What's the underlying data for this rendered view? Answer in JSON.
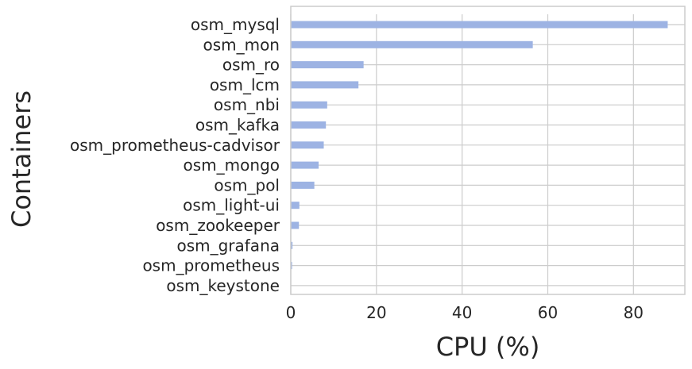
{
  "chart_data": {
    "type": "bar",
    "orientation": "horizontal",
    "categories": [
      "osm_mysql",
      "osm_mon",
      "osm_ro",
      "osm_lcm",
      "osm_nbi",
      "osm_kafka",
      "osm_prometheus-cadvisor",
      "osm_mongo",
      "osm_pol",
      "osm_light-ui",
      "osm_zookeeper",
      "osm_grafana",
      "osm_prometheus",
      "osm_keystone"
    ],
    "values": [
      88,
      56.5,
      17,
      15.8,
      8.5,
      8.2,
      7.7,
      6.5,
      5.5,
      2,
      1.9,
      0.4,
      0.3,
      0
    ],
    "xlabel": "CPU (%)",
    "ylabel": "Containers",
    "xlim": [
      0,
      92
    ],
    "xticks": [
      0,
      20,
      40,
      60,
      80
    ],
    "grid": true,
    "bar_color": "#9db3e3",
    "grid_color": "#cccccc",
    "text_color": "#262626"
  }
}
